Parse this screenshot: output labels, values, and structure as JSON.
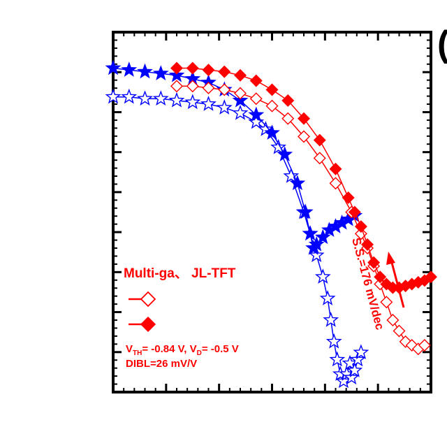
{
  "chart_data": {
    "type": "scatter",
    "title": "",
    "xlabel": "",
    "ylabel": "",
    "panel_letter": "(",
    "xlim": [
      0,
      100
    ],
    "ylim": [
      0,
      100
    ],
    "grid": false,
    "legend_placement": "bottom-left",
    "legend": {
      "title": "Multi-ga、 JL-TFT",
      "entries": [
        "",
        ""
      ],
      "note_line1_parts": [
        "V",
        "TH",
        "= -0.84 V, V",
        "D",
        "= -0.5 V"
      ],
      "note_line2": "DIBL=26 mV/V"
    },
    "annotation": {
      "text": "S.S.=176 mV/dec",
      "x": 87,
      "y": 34
    },
    "series": [
      {
        "marker": "star-open",
        "color": "#0000ff",
        "x": [
          0,
          5,
          10,
          15,
          20,
          25,
          30,
          35,
          40,
          45,
          48,
          52,
          56,
          60,
          62,
          64,
          66,
          67.5,
          68.5,
          69.5,
          70.5,
          71.5,
          72.5,
          73.5,
          74.5,
          75,
          76,
          77,
          78
        ],
        "y": [
          82,
          82,
          81.5,
          81.5,
          81,
          80.5,
          80,
          79,
          77.5,
          75,
          73,
          68,
          60,
          50,
          44,
          38,
          32,
          26,
          20,
          14,
          9,
          5,
          3,
          5,
          8,
          4,
          6,
          9,
          11
        ]
      },
      {
        "marker": "star-filled",
        "color": "#0000ff",
        "x": [
          0,
          5,
          10,
          15,
          20,
          25,
          30,
          35,
          40,
          45,
          50,
          54,
          58,
          60.5,
          62,
          63,
          64,
          66,
          68,
          70,
          72,
          74,
          76
        ],
        "y": [
          90,
          89.5,
          89,
          88.5,
          88,
          87,
          86,
          84,
          81,
          77,
          72,
          66,
          58,
          50,
          44,
          40,
          41,
          43,
          45,
          46,
          47,
          48,
          49
        ]
      },
      {
        "marker": "diamond-open",
        "color": "#ff0000",
        "x": [
          20,
          25,
          30,
          35,
          40,
          45,
          50,
          55,
          60,
          65,
          70,
          75,
          78,
          80,
          82,
          84,
          86,
          88,
          90,
          92,
          94,
          96,
          98
        ],
        "y": [
          85,
          85,
          84.5,
          84,
          83,
          81.5,
          79.5,
          76,
          71,
          65,
          58,
          50,
          44,
          40,
          35,
          30,
          25,
          20,
          17,
          14,
          13,
          12,
          13
        ]
      },
      {
        "marker": "diamond-filled",
        "color": "#ff0000",
        "x": [
          20,
          25,
          30,
          35,
          40,
          45,
          50,
          55,
          60,
          65,
          70,
          74,
          76,
          78,
          80,
          82,
          84,
          86,
          88,
          90,
          92,
          94,
          96,
          98,
          100
        ],
        "y": [
          90,
          90,
          89.5,
          89,
          88,
          86.5,
          84,
          81,
          76,
          70,
          62,
          54,
          50,
          46,
          41,
          36,
          32,
          30,
          29,
          29,
          29.5,
          30,
          30.5,
          31,
          32
        ]
      }
    ]
  }
}
